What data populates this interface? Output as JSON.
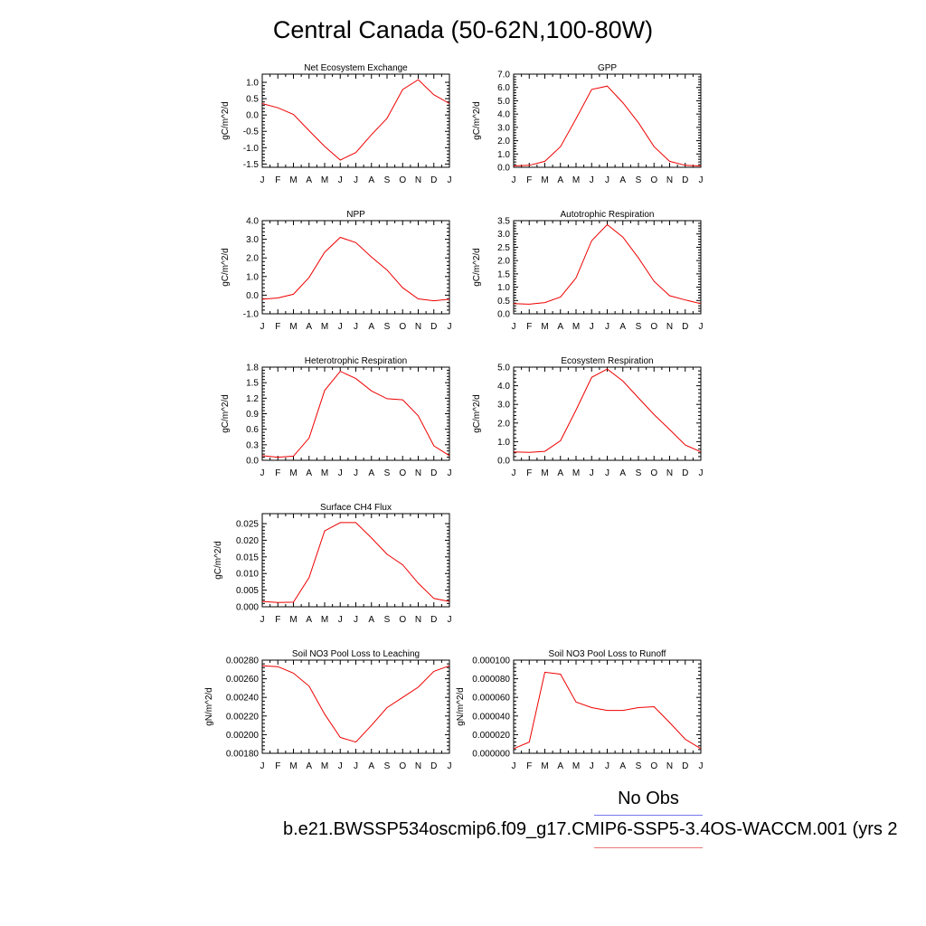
{
  "title": "Central Canada (50-62N,100-80W)",
  "legend": {
    "obs_label": "No Obs",
    "case_label": "b.e21.BWSSP534oscmip6.f09_g17.CMIP6-SSP5-3.4OS-WACCM.001 (yrs 2",
    "obs_color": "#7777ee",
    "case_color": "#ee0000"
  },
  "chart_data": [
    {
      "type": "line",
      "title": "Net Ecosystem Exchange",
      "ylabel": "gC/m^2/d",
      "categories": [
        "J",
        "F",
        "M",
        "A",
        "M",
        "J",
        "J",
        "A",
        "S",
        "O",
        "N",
        "D",
        "J"
      ],
      "ylim": [
        -1.6,
        1.25
      ],
      "yticks": [
        -1.5,
        -1.0,
        -0.5,
        0.0,
        0.5,
        1.0
      ],
      "tickfmt": "1",
      "values": [
        0.35,
        0.22,
        0.02,
        -0.48,
        -0.96,
        -1.38,
        -1.15,
        -0.6,
        -0.1,
        0.78,
        1.08,
        0.62,
        0.35
      ]
    },
    {
      "type": "line",
      "title": "GPP",
      "ylabel": "gC/m^2/d",
      "categories": [
        "J",
        "F",
        "M",
        "A",
        "M",
        "J",
        "J",
        "A",
        "S",
        "O",
        "N",
        "D",
        "J"
      ],
      "ylim": [
        0,
        7
      ],
      "yticks": [
        0,
        1,
        2,
        3,
        4,
        5,
        6,
        7
      ],
      "tickfmt": "1",
      "values": [
        0.1,
        0.15,
        0.45,
        1.55,
        3.65,
        5.85,
        6.1,
        4.85,
        3.35,
        1.55,
        0.45,
        0.15,
        0.1
      ]
    },
    {
      "type": "line",
      "title": "NPP",
      "ylabel": "gC/m^2/d",
      "categories": [
        "J",
        "F",
        "M",
        "A",
        "M",
        "J",
        "J",
        "A",
        "S",
        "O",
        "N",
        "D",
        "J"
      ],
      "ylim": [
        -1,
        4
      ],
      "yticks": [
        -1,
        0,
        1,
        2,
        3,
        4
      ],
      "tickfmt": "1",
      "values": [
        -0.22,
        -0.15,
        0.05,
        0.95,
        2.3,
        3.1,
        2.82,
        2.05,
        1.35,
        0.4,
        -0.2,
        -0.3,
        -0.22
      ]
    },
    {
      "type": "line",
      "title": "Autotrophic Respiration",
      "ylabel": "gC/m^2/d",
      "categories": [
        "J",
        "F",
        "M",
        "A",
        "M",
        "J",
        "J",
        "A",
        "S",
        "O",
        "N",
        "D",
        "J"
      ],
      "ylim": [
        0,
        3.5
      ],
      "yticks": [
        0,
        0.5,
        1.0,
        1.5,
        2.0,
        2.5,
        3.0,
        3.5
      ],
      "tickfmt": "1",
      "values": [
        0.38,
        0.36,
        0.42,
        0.63,
        1.35,
        2.75,
        3.35,
        2.88,
        2.1,
        1.22,
        0.68,
        0.52,
        0.38
      ]
    },
    {
      "type": "line",
      "title": "Heterotrophic Respiration",
      "ylabel": "gC/m^2/d",
      "categories": [
        "J",
        "F",
        "M",
        "A",
        "M",
        "J",
        "J",
        "A",
        "S",
        "O",
        "N",
        "D",
        "J"
      ],
      "ylim": [
        0,
        1.8
      ],
      "yticks": [
        0,
        0.3,
        0.6,
        0.9,
        1.2,
        1.5,
        1.8
      ],
      "tickfmt": "1",
      "values": [
        0.09,
        0.06,
        0.08,
        0.43,
        1.35,
        1.72,
        1.58,
        1.34,
        1.19,
        1.17,
        0.86,
        0.28,
        0.09
      ]
    },
    {
      "type": "line",
      "title": "Ecosystem Respiration",
      "ylabel": "gC/m^2/d",
      "categories": [
        "J",
        "F",
        "M",
        "A",
        "M",
        "J",
        "J",
        "A",
        "S",
        "O",
        "N",
        "D",
        "J"
      ],
      "ylim": [
        0,
        5
      ],
      "yticks": [
        0,
        1,
        2,
        3,
        4,
        5
      ],
      "tickfmt": "1",
      "values": [
        0.45,
        0.42,
        0.48,
        1.05,
        2.7,
        4.45,
        4.9,
        4.25,
        3.35,
        2.45,
        1.65,
        0.82,
        0.45
      ]
    },
    {
      "type": "line",
      "title": "Surface CH4 Flux",
      "ylabel": "gC/m^2/d",
      "categories": [
        "J",
        "F",
        "M",
        "A",
        "M",
        "J",
        "J",
        "A",
        "S",
        "O",
        "N",
        "D",
        "J"
      ],
      "ylim": [
        0,
        0.028
      ],
      "yticks": [
        0,
        0.005,
        0.01,
        0.015,
        0.02,
        0.025
      ],
      "tickfmt": "3",
      "values": [
        0.0016,
        0.0013,
        0.0014,
        0.0088,
        0.0228,
        0.0253,
        0.0253,
        0.0207,
        0.0158,
        0.0126,
        0.0071,
        0.0025,
        0.0016
      ]
    },
    {
      "type": "line",
      "title": "Soil NO3 Pool Loss to Leaching",
      "ylabel": "gN/m^2/d",
      "categories": [
        "J",
        "F",
        "M",
        "A",
        "M",
        "J",
        "J",
        "A",
        "S",
        "O",
        "N",
        "D",
        "J"
      ],
      "ylim": [
        0.0018,
        0.0028
      ],
      "yticks": [
        0.0018,
        0.002,
        0.0022,
        0.0024,
        0.0026,
        0.0028
      ],
      "tickfmt": "5",
      "values": [
        0.00274,
        0.00273,
        0.00266,
        0.00252,
        0.00222,
        0.00197,
        0.00192,
        0.0021,
        0.00229,
        0.0024,
        0.00251,
        0.00268,
        0.00274
      ]
    },
    {
      "type": "line",
      "title": "Soil NO3 Pool Loss to Runoff",
      "ylabel": "gN/m^2/d",
      "categories": [
        "J",
        "F",
        "M",
        "A",
        "M",
        "J",
        "J",
        "A",
        "S",
        "O",
        "N",
        "D",
        "J"
      ],
      "ylim": [
        0,
        0.0001
      ],
      "yticks": [
        0,
        2e-05,
        4e-05,
        6e-05,
        8e-05,
        0.0001
      ],
      "tickfmt": "6",
      "values": [
        5e-06,
        1.2e-05,
        8.7e-05,
        8.5e-05,
        5.5e-05,
        4.9e-05,
        4.6e-05,
        4.6e-05,
        4.9e-05,
        5e-05,
        3.3e-05,
        1.5e-05,
        5e-06
      ]
    }
  ]
}
